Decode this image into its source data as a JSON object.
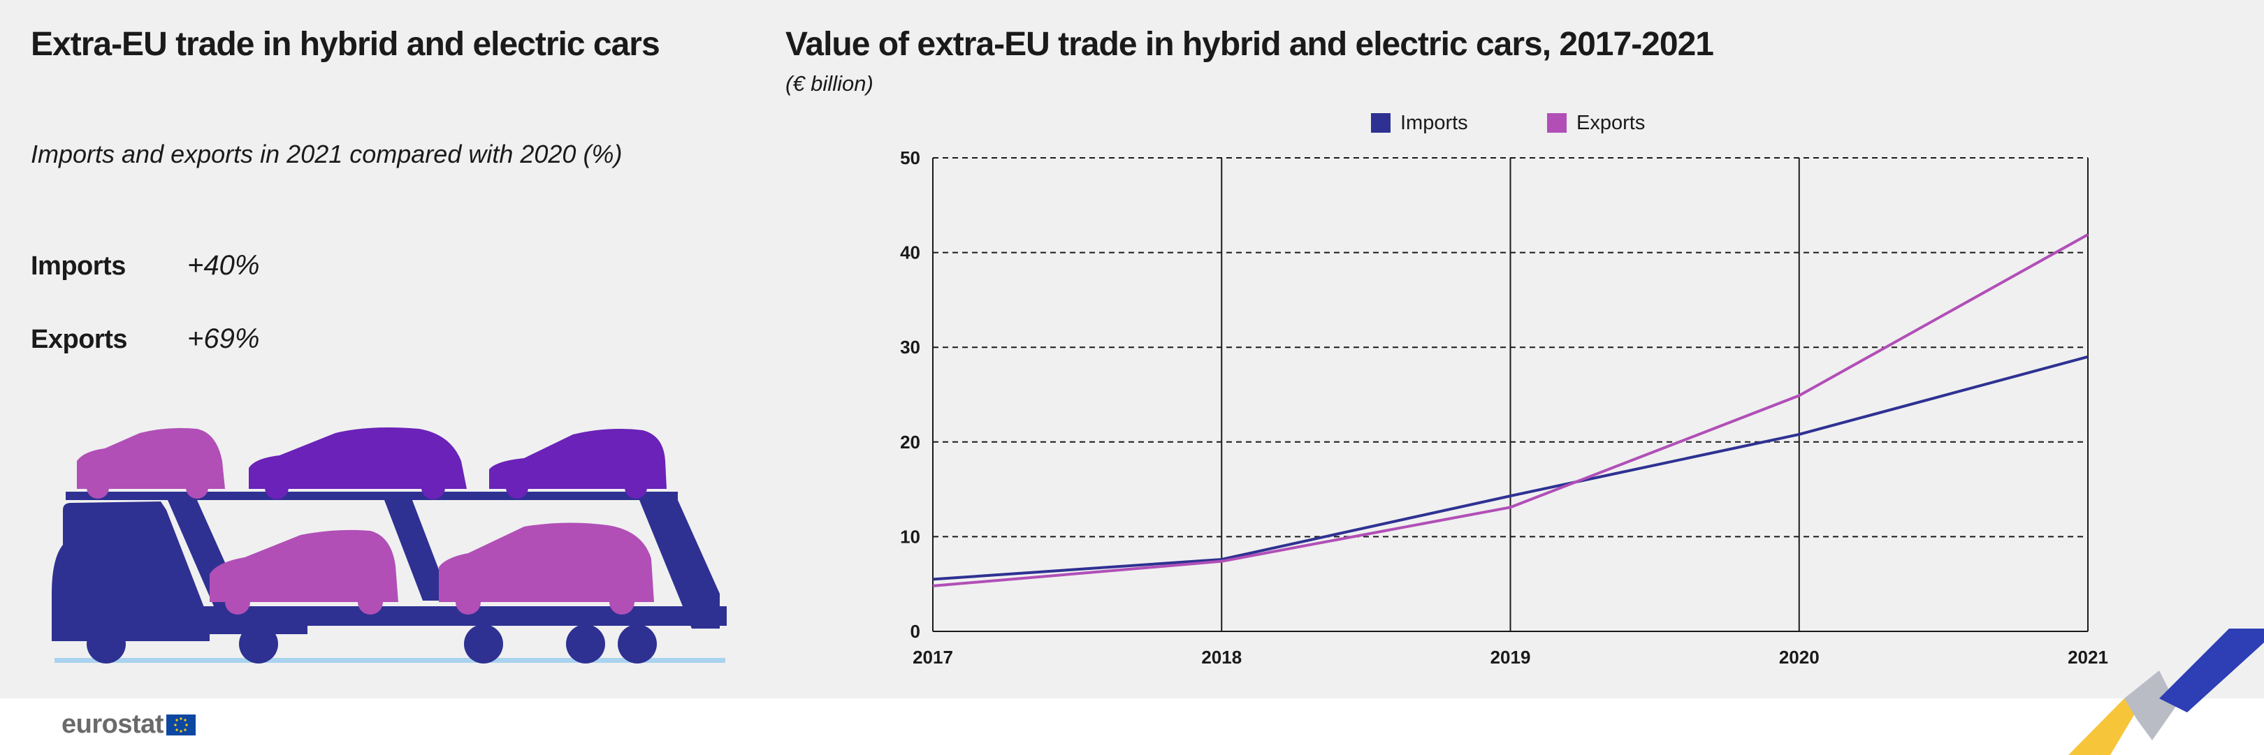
{
  "left_panel": {
    "title": "Extra-EU trade in hybrid and electric cars",
    "subtitle": "Imports and exports in 2021 compared with 2020 (%)",
    "stats": [
      {
        "label": "Imports",
        "value": "+40%"
      },
      {
        "label": "Exports",
        "value": "+69%"
      }
    ]
  },
  "colors": {
    "imports": "#2e3192",
    "exports": "#b14fb7",
    "truck": "#2e3192",
    "car_pink": "#b14fb7",
    "car_purple": "#6a22b8"
  },
  "chart_data": {
    "type": "line",
    "title": "Value of extra-EU trade in hybrid and electric cars, 2017-2021",
    "subtitle": "(€ billion)",
    "x": [
      "2017",
      "2018",
      "2019",
      "2020",
      "2021"
    ],
    "series": [
      {
        "name": "Imports",
        "values": [
          5.5,
          7.6,
          14.3,
          20.8,
          29.0
        ]
      },
      {
        "name": "Exports",
        "values": [
          4.8,
          7.4,
          13.1,
          24.9,
          41.9
        ]
      }
    ],
    "ylim": [
      0,
      50
    ],
    "yticks": [
      0,
      10,
      20,
      30,
      40,
      50
    ],
    "legend_position": "top-center",
    "grid": "dashed horizontal, solid vertical"
  },
  "footer": {
    "logo_text": "eurostat"
  }
}
